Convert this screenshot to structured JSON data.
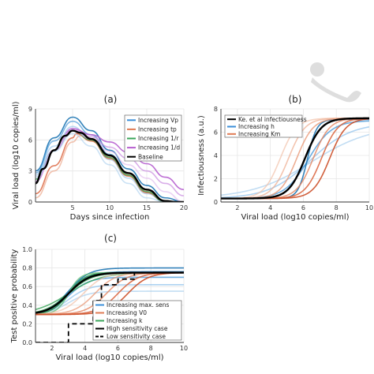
{
  "chart_data": [
    {
      "type": "line",
      "title": "(a)",
      "xlabel": "Days since infection",
      "ylabel": "Viral load (log10 copies/ml)",
      "xlim": [
        0,
        20
      ],
      "ylim": [
        0,
        9
      ],
      "xticks": [
        5,
        10,
        15,
        20
      ],
      "yticks": [
        0,
        3,
        6,
        9
      ],
      "grid": true,
      "legend_position": "top-right",
      "legend": [
        {
          "label": "Increasing Vp",
          "color": "#3b8fd9"
        },
        {
          "label": "Increasing tp",
          "color": "#e07b54"
        },
        {
          "label": "Increasing 1/r",
          "color": "#3aa65a"
        },
        {
          "label": "Increasing 1/d",
          "color": "#b65fcf"
        },
        {
          "label": "Baseline",
          "color": "#000000"
        }
      ],
      "series": [
        {
          "group": "vp",
          "color": "#1f77b4",
          "alpha": 0.9,
          "x": [
            0,
            2.5,
            5,
            7.5,
            10,
            12.5,
            15,
            17.5,
            20
          ],
          "y": [
            3.0,
            6.2,
            8.2,
            6.9,
            5.0,
            3.2,
            1.6,
            0.4,
            0
          ]
        },
        {
          "group": "vp",
          "color": "#4a9ad9",
          "alpha": 0.7,
          "x": [
            0,
            2.5,
            5,
            7.5,
            10,
            12.5,
            15,
            17.5,
            20
          ],
          "y": [
            2.8,
            5.9,
            7.8,
            6.5,
            4.6,
            2.8,
            1.2,
            0.1,
            0
          ]
        },
        {
          "group": "vp",
          "color": "#8cc0ec",
          "alpha": 0.6,
          "x": [
            0,
            2.5,
            5,
            7.5,
            10,
            12.5,
            15,
            17.5,
            20
          ],
          "y": [
            2.6,
            5.4,
            7.3,
            6.0,
            4.1,
            2.3,
            0.8,
            0,
            0
          ]
        },
        {
          "group": "tp",
          "color": "#d9603a",
          "alpha": 0.8,
          "x": [
            0,
            2.5,
            5,
            5.5,
            7.5,
            10,
            12.5,
            15,
            17.5,
            20
          ],
          "y": [
            0.8,
            3.5,
            6.2,
            6.6,
            5.9,
            4.2,
            2.5,
            0.9,
            0,
            0
          ]
        },
        {
          "group": "tp",
          "color": "#ea9a78",
          "alpha": 0.6,
          "x": [
            0,
            2.5,
            5,
            6,
            7.5,
            10,
            12.5,
            15,
            17.5,
            20
          ],
          "y": [
            0.4,
            3.0,
            5.8,
            6.4,
            6.0,
            4.4,
            2.7,
            1.1,
            0,
            0
          ]
        },
        {
          "group": "r",
          "color": "#2e9a4e",
          "alpha": 0.8,
          "x": [
            0,
            2.5,
            5,
            7.5,
            10,
            12.5,
            15,
            17.5,
            20
          ],
          "y": [
            2.2,
            5.0,
            6.9,
            6.0,
            4.3,
            2.6,
            1.0,
            0,
            0
          ]
        },
        {
          "group": "d",
          "color": "#b65fcf",
          "alpha": 0.9,
          "x": [
            0,
            2.5,
            5,
            7.5,
            10,
            12.5,
            15,
            17.5,
            20
          ],
          "y": [
            2.0,
            5.0,
            7.1,
            6.5,
            5.8,
            4.8,
            3.7,
            2.4,
            1.2
          ]
        },
        {
          "group": "d",
          "color": "#c98be0",
          "alpha": 0.7,
          "x": [
            0,
            2.5,
            5,
            7.5,
            10,
            12.5,
            15,
            17.5,
            20
          ],
          "y": [
            2.0,
            5.0,
            7.0,
            6.3,
            5.3,
            4.2,
            3.0,
            1.8,
            0.6
          ]
        },
        {
          "group": "d",
          "color": "#ddb4ec",
          "alpha": 0.6,
          "x": [
            0,
            2.5,
            5,
            7.5,
            10,
            12.5,
            15,
            17.5,
            20
          ],
          "y": [
            2.0,
            5.0,
            6.9,
            6.1,
            4.9,
            3.6,
            2.3,
            1.0,
            0
          ]
        },
        {
          "group": "vp",
          "color": "#a8cfee",
          "alpha": 0.6,
          "x": [
            0,
            2.5,
            5,
            7.5,
            10,
            12.5,
            15,
            17.5,
            20
          ],
          "y": [
            2.4,
            4.9,
            6.6,
            5.4,
            3.6,
            1.8,
            0.4,
            0,
            0
          ]
        },
        {
          "group": "baseline",
          "color": "#000000",
          "alpha": 1,
          "width": 2.4,
          "x": [
            0,
            1,
            2.5,
            4,
            5,
            6,
            7.5,
            10,
            12.5,
            15,
            17.5,
            19,
            20
          ],
          "y": [
            1.8,
            3.2,
            5.0,
            6.4,
            6.9,
            6.7,
            6.1,
            4.5,
            2.8,
            1.2,
            0.1,
            0,
            0
          ]
        }
      ]
    },
    {
      "type": "line",
      "title": "(b)",
      "xlabel": "Viral load (log10 copies/ml)",
      "ylabel": "Infectiousness (a.u.)",
      "xlim": [
        1,
        10
      ],
      "ylim": [
        0,
        8
      ],
      "xticks": [
        2,
        4,
        6,
        8,
        10
      ],
      "yticks": [
        0,
        2,
        4,
        6,
        8
      ],
      "grid": true,
      "legend_position": "top-left",
      "legend": [
        {
          "label": "Ke. et al infectiousness",
          "color": "#000000"
        },
        {
          "label": "Increasing h",
          "color": "#3b8fd9"
        },
        {
          "label": "Increasing Km",
          "color": "#e07b54"
        }
      ],
      "series": [
        {
          "kind": "sigmoid",
          "color": "#a8cfee",
          "alpha": 0.7,
          "mid": 6.5,
          "slope": 0.55,
          "top": 6.6
        },
        {
          "kind": "sigmoid",
          "color": "#8cc0ec",
          "alpha": 0.7,
          "mid": 6.4,
          "slope": 0.8,
          "top": 6.8
        },
        {
          "kind": "sigmoid",
          "color": "#4a9ad9",
          "alpha": 0.8,
          "mid": 6.3,
          "slope": 1.4,
          "top": 7.0
        },
        {
          "kind": "sigmoid",
          "color": "#1f77b4",
          "alpha": 0.9,
          "mid": 6.25,
          "slope": 3.5,
          "top": 7.1
        },
        {
          "kind": "sigmoid",
          "color": "#f2c2aa",
          "alpha": 0.7,
          "mid": 4.6,
          "slope": 2.0,
          "top": 7.2
        },
        {
          "kind": "sigmoid",
          "color": "#eeab8d",
          "alpha": 0.7,
          "mid": 5.1,
          "slope": 2.0,
          "top": 7.2
        },
        {
          "kind": "sigmoid",
          "color": "#ea9a78",
          "alpha": 0.8,
          "mid": 5.6,
          "slope": 2.0,
          "top": 7.2
        },
        {
          "kind": "sigmoid",
          "color": "#e38560",
          "alpha": 0.8,
          "mid": 6.6,
          "slope": 2.0,
          "top": 7.2
        },
        {
          "kind": "sigmoid",
          "color": "#d9603a",
          "alpha": 0.85,
          "mid": 7.1,
          "slope": 2.0,
          "top": 7.2
        },
        {
          "kind": "sigmoid",
          "color": "#cc4f28",
          "alpha": 0.9,
          "mid": 7.6,
          "slope": 2.0,
          "top": 7.2
        },
        {
          "kind": "sigmoid",
          "color": "#000000",
          "alpha": 1,
          "width": 2.4,
          "mid": 6.1,
          "slope": 2.0,
          "top": 7.2
        }
      ]
    },
    {
      "type": "line",
      "title": "(c)",
      "xlabel": "Viral load (log10 copies/ml)",
      "ylabel": "Test positive probability",
      "xlim": [
        1,
        10
      ],
      "ylim": [
        0,
        1.0
      ],
      "xticks": [
        2,
        4,
        6,
        8,
        10
      ],
      "yticks": [
        0,
        0.2,
        0.4,
        0.6,
        0.8,
        1.0
      ],
      "ytick_labels": [
        "0.0",
        "0.2",
        "0.4",
        "0.6",
        "0.8",
        "1.0"
      ],
      "grid": true,
      "legend_position": "bottom-right",
      "legend": [
        {
          "label": "Increasing max. sens",
          "color": "#3b8fd9"
        },
        {
          "label": "Increasing V0",
          "color": "#e07b54"
        },
        {
          "label": "Increasing k",
          "color": "#3aa65a"
        },
        {
          "label": "High sensitivity case",
          "color": "#000000",
          "dash": false
        },
        {
          "label": "Low sensitivity case",
          "color": "#000000",
          "dash": true
        }
      ],
      "series": [
        {
          "kind": "sigmoid",
          "color": "#a8cfee",
          "alpha": 0.7,
          "mid": 3.0,
          "slope": 1.6,
          "top": 0.55,
          "bottom": 0.0
        },
        {
          "kind": "sigmoid",
          "color": "#8cc0ec",
          "alpha": 0.7,
          "mid": 3.0,
          "slope": 1.6,
          "top": 0.62,
          "bottom": 0.0
        },
        {
          "kind": "sigmoid",
          "color": "#4a9ad9",
          "alpha": 0.8,
          "mid": 3.0,
          "slope": 1.6,
          "top": 0.7,
          "bottom": 0.0
        },
        {
          "kind": "sigmoid",
          "color": "#2f86cc",
          "alpha": 0.85,
          "mid": 3.0,
          "slope": 1.6,
          "top": 0.76,
          "bottom": 0.0
        },
        {
          "kind": "sigmoid",
          "color": "#1f77b4",
          "alpha": 0.9,
          "mid": 3.0,
          "slope": 1.6,
          "top": 0.8,
          "bottom": 0.0
        },
        {
          "kind": "sigmoid",
          "color": "#3aa65a",
          "alpha": 0.8,
          "mid": 3.0,
          "slope": 1.0,
          "top": 0.75,
          "bottom": 0.0
        },
        {
          "kind": "sigmoid",
          "color": "#2e9a4e",
          "alpha": 0.8,
          "mid": 3.0,
          "slope": 1.4,
          "top": 0.75,
          "bottom": 0.0
        },
        {
          "kind": "sigmoid",
          "color": "#1e8a3e",
          "alpha": 0.85,
          "mid": 3.0,
          "slope": 2.0,
          "top": 0.75,
          "bottom": 0.0
        },
        {
          "kind": "sigmoid",
          "color": "#5cbb72",
          "alpha": 0.75,
          "mid": 3.0,
          "slope": 2.8,
          "top": 0.75,
          "bottom": 0.0
        },
        {
          "kind": "sigmoid",
          "color": "#f2c2aa",
          "alpha": 0.7,
          "mid": 3.9,
          "slope": 1.6,
          "top": 0.75,
          "bottom": 0.0
        },
        {
          "kind": "sigmoid",
          "color": "#ea9a78",
          "alpha": 0.75,
          "mid": 4.6,
          "slope": 1.6,
          "top": 0.75,
          "bottom": 0.0
        },
        {
          "kind": "sigmoid",
          "color": "#e38560",
          "alpha": 0.8,
          "mid": 5.3,
          "slope": 1.6,
          "top": 0.75,
          "bottom": 0.0
        },
        {
          "kind": "sigmoid",
          "color": "#d9603a",
          "alpha": 0.85,
          "mid": 6.0,
          "slope": 1.6,
          "top": 0.75,
          "bottom": 0.0
        },
        {
          "kind": "sigmoid",
          "color": "#cc4f28",
          "alpha": 0.9,
          "mid": 6.6,
          "slope": 1.6,
          "top": 0.75,
          "bottom": 0.0
        },
        {
          "kind": "sigmoid",
          "color": "#000000",
          "alpha": 1,
          "width": 2.4,
          "mid": 3.0,
          "slope": 1.6,
          "top": 0.75,
          "bottom": 0.0
        },
        {
          "kind": "steps",
          "color": "#000000",
          "alpha": 1,
          "width": 1.8,
          "dash": "6,4",
          "x": [
            1,
            3,
            3,
            4.5,
            4.5,
            5,
            5,
            5.5,
            5.5,
            6,
            6,
            7,
            7,
            10
          ],
          "y": [
            0,
            0,
            0.2,
            0.2,
            0.45,
            0.45,
            0.62,
            0.62,
            0.62,
            0.62,
            0.68,
            0.68,
            0.75,
            0.75
          ]
        }
      ]
    }
  ]
}
